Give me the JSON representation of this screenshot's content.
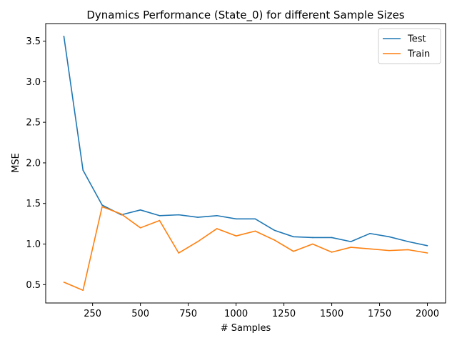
{
  "chart_data": {
    "type": "line",
    "title": "Dynamics Performance (State_0) for different Sample Sizes",
    "xlabel": "# Samples",
    "ylabel": "MSE",
    "x": [
      100,
      200,
      300,
      400,
      500,
      600,
      700,
      800,
      900,
      1000,
      1100,
      1200,
      1300,
      1400,
      1500,
      1600,
      1700,
      1800,
      1900,
      2000
    ],
    "series": [
      {
        "name": "Test",
        "color": "#1f77b4",
        "values": [
          3.56,
          1.91,
          1.48,
          1.36,
          1.42,
          1.35,
          1.36,
          1.33,
          1.35,
          1.31,
          1.31,
          1.17,
          1.09,
          1.08,
          1.08,
          1.03,
          1.13,
          1.09,
          1.03,
          0.98
        ]
      },
      {
        "name": "Train",
        "color": "#ff7f0e",
        "values": [
          0.53,
          0.43,
          1.46,
          1.37,
          1.2,
          1.29,
          0.89,
          1.03,
          1.19,
          1.1,
          1.16,
          1.05,
          0.91,
          1.0,
          0.9,
          0.96,
          0.94,
          0.92,
          0.93,
          0.89
        ]
      }
    ],
    "xlim": [
      5,
      2095
    ],
    "ylim": [
      0.274,
      3.716
    ],
    "xticks": [
      250,
      500,
      750,
      1000,
      1250,
      1500,
      1750,
      2000
    ],
    "yticks": [
      0.5,
      1.0,
      1.5,
      2.0,
      2.5,
      3.0,
      3.5
    ],
    "ytick_labels": [
      "0.5",
      "1.0",
      "1.5",
      "2.0",
      "2.5",
      "3.0",
      "3.5"
    ],
    "grid": false,
    "legend_position": "top-right"
  }
}
